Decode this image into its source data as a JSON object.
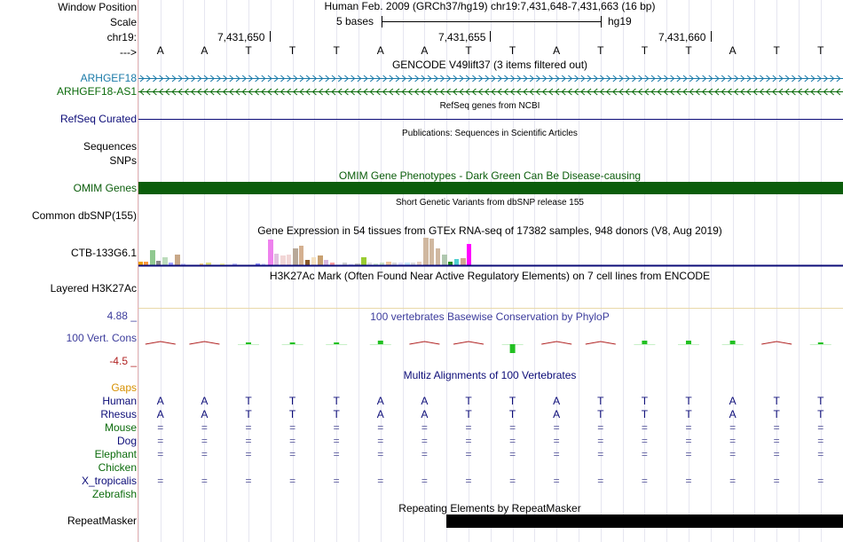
{
  "header": {
    "window_position_label": "Window Position",
    "window_position_value": "Human Feb. 2009 (GRCh37/hg19)   chr19:7,431,648-7,431,663 (16 bp)",
    "scale_label": "Scale",
    "scale_text": "5 bases",
    "scale_db": "hg19",
    "chrom_label": "chr19:",
    "ticks": [
      "7,431,650",
      "7,431,655",
      "7,431,660"
    ],
    "strand_label": "--->"
  },
  "bases": [
    "A",
    "A",
    "T",
    "T",
    "T",
    "A",
    "A",
    "T",
    "T",
    "A",
    "T",
    "T",
    "T",
    "A",
    "T",
    "T"
  ],
  "tracks": {
    "gencode": {
      "title": "GENCODE V49lift37 (3 items filtered out)",
      "items": [
        "ARHGEF18",
        "ARHGEF18-AS1"
      ]
    },
    "refseq": {
      "title": "RefSeq genes from NCBI",
      "label": "RefSeq Curated"
    },
    "publications": {
      "title": "Publications: Sequences in Scientific Articles",
      "labels": [
        "Sequences",
        "SNPs"
      ]
    },
    "omim": {
      "title": "OMIM Gene Phenotypes - Dark Green Can Be Disease-causing",
      "label": "OMIM Genes"
    },
    "dbsnp": {
      "title": "Short Genetic Variants from dbSNP release 155",
      "label": "Common dbSNP(155)"
    },
    "gtex": {
      "title": "Gene Expression in 54 tissues from GTEx RNA-seq of 17382 samples, 948 donors (V8, Aug 2019)",
      "label": "CTB-133G6.1"
    },
    "h3k27ac": {
      "title": "H3K27Ac Mark (Often Found Near Active Regulatory Elements) on 7 cell lines from ENCODE",
      "label": "Layered H3K27Ac"
    },
    "phylop": {
      "title": "100 vertebrates Basewise Conservation by PhyloP",
      "label": "100 Vert. Cons",
      "max": "4.88 _",
      "min": "-4.5 _"
    },
    "multiz": {
      "title": "Multiz Alignments of 100 Vertebrates",
      "gaps_label": "Gaps",
      "species": [
        {
          "name": "Human",
          "row": "AATTTAATTATTTATT"
        },
        {
          "name": "Rhesus",
          "row": "AATTTAATTATTTATT"
        },
        {
          "name": "Mouse",
          "row": "================"
        },
        {
          "name": "Dog",
          "row": "================"
        },
        {
          "name": "Elephant",
          "row": "================"
        },
        {
          "name": "Chicken",
          "row": ""
        },
        {
          "name": "X_tropicalis",
          "row": "================"
        },
        {
          "name": "Zebrafish",
          "row": ""
        }
      ]
    },
    "repeatmasker": {
      "title": "Repeating Elements by RepeatMasker",
      "label": "RepeatMasker"
    }
  },
  "colors": {
    "gencode_blue": "#1a7aa8",
    "gencode_green": "#0b6b0b",
    "refseq_navy": "#0c0c78",
    "omim_green": "#0b5d0b",
    "phylop_blue": "#3c3c9c",
    "phylop_red": "#b02222",
    "phylop_green": "#22c022",
    "gaps_orange": "#d79000"
  }
}
